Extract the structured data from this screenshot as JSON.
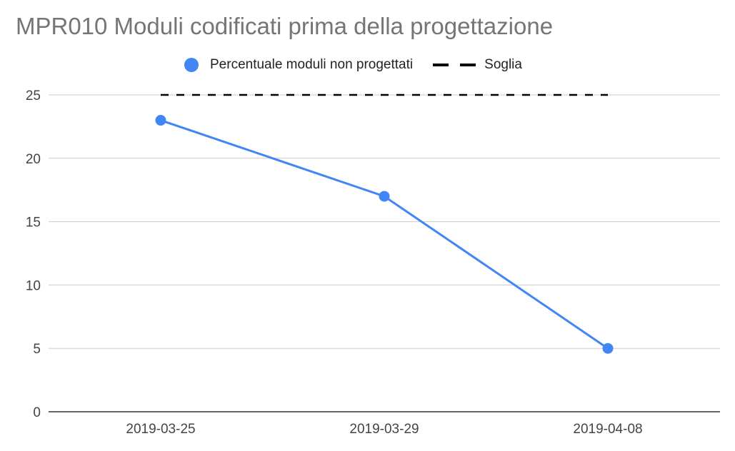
{
  "chart_data": {
    "type": "line",
    "title": "MPR010 Moduli codificati prima della progettazione",
    "categories": [
      "2019-03-25",
      "2019-03-29",
      "2019-04-08"
    ],
    "series": [
      {
        "name": "Percentuale moduli non progettati",
        "values": [
          23,
          17,
          5
        ],
        "color": "#4285f4",
        "style": "solid-with-markers"
      },
      {
        "name": "Soglia",
        "values": [
          25,
          25,
          25
        ],
        "color": "#000000",
        "style": "dashed"
      }
    ],
    "yticks": [
      0,
      5,
      10,
      15,
      20,
      25
    ],
    "ylim": [
      0,
      25
    ],
    "xlabel": "",
    "ylabel": "",
    "grid": true,
    "legend_position": "top"
  }
}
